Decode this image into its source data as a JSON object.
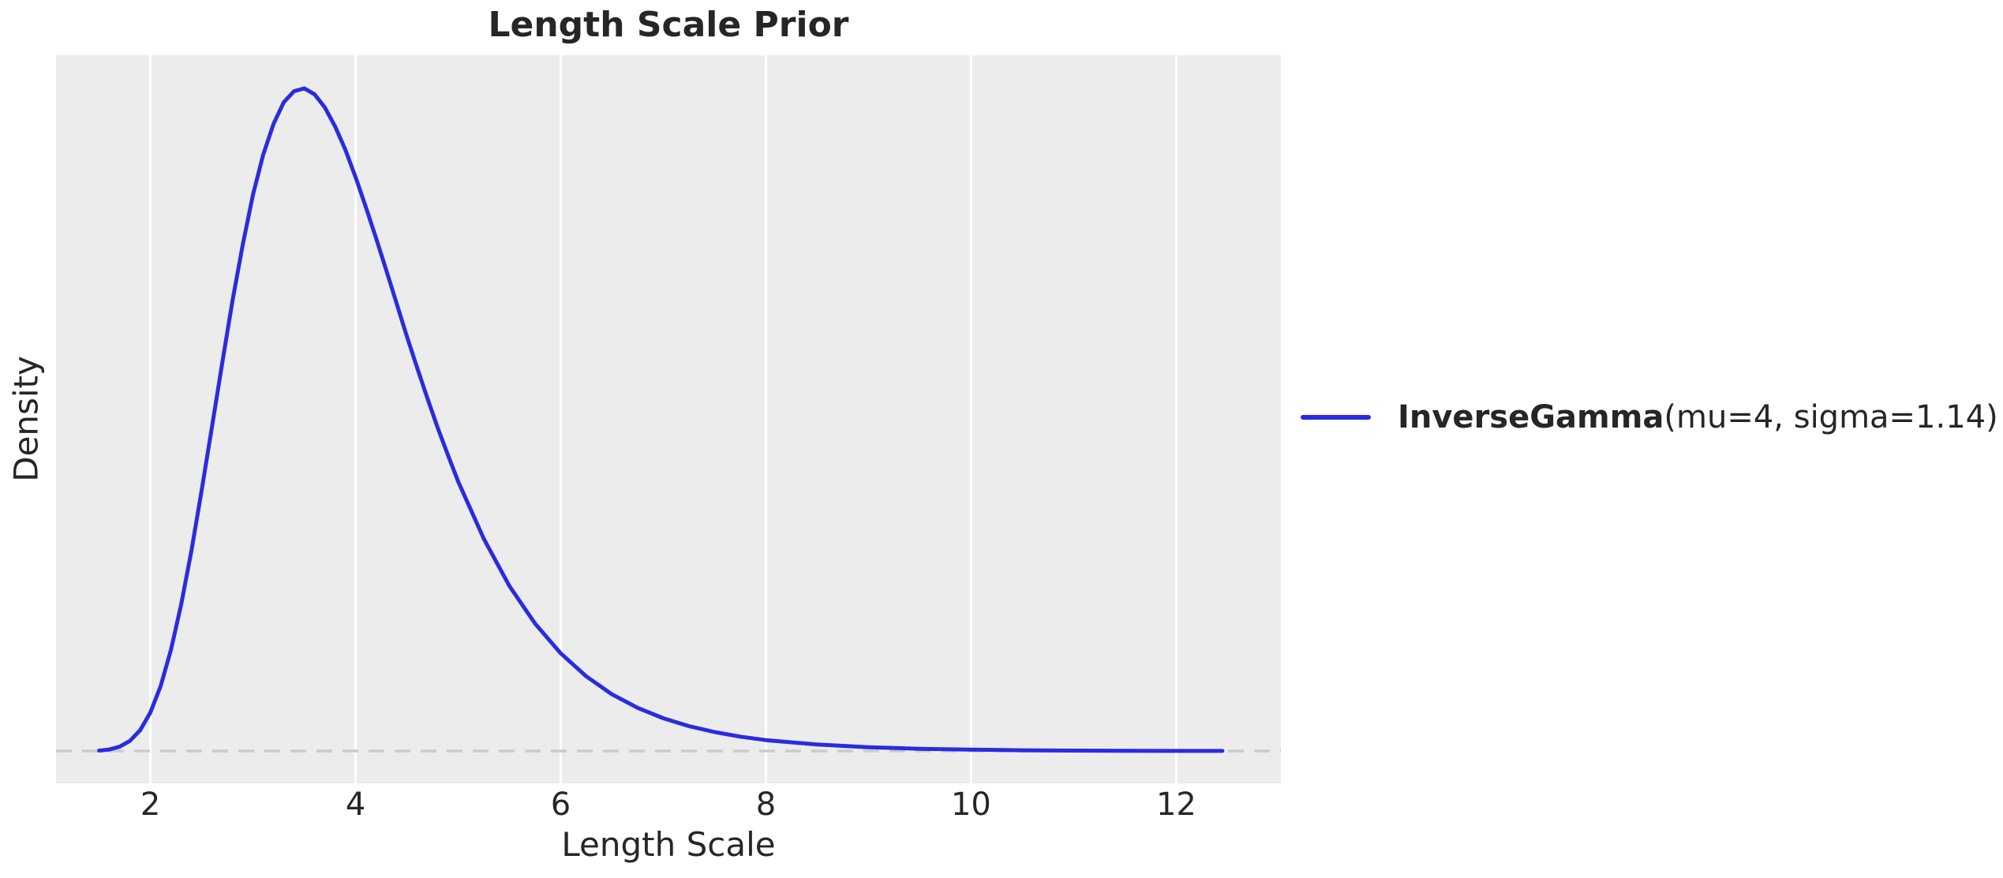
{
  "figure": {
    "title": "Length Scale Prior",
    "xlabel": "Length Scale",
    "ylabel": "Density"
  },
  "legend": {
    "label_bold": "InverseGamma",
    "label_rest": "(mu=4, sigma=1.14)"
  },
  "colors": {
    "curve": "#2b2be0",
    "plot_bg": "#ececec",
    "grid": "#ffffff",
    "zero_line": "#cbcbcb",
    "text": "#262626"
  },
  "chart_data": {
    "type": "line",
    "title": "Length Scale Prior",
    "xlabel": "Length Scale",
    "ylabel": "Density",
    "grid": "vertical-gridlines-only",
    "legend_position": "center-right-outside-axes",
    "xlim": [
      1.08,
      13.02
    ],
    "ylim": [
      -0.0204,
      0.4395
    ],
    "x_ticks": [
      2,
      4,
      6,
      8,
      10,
      12
    ],
    "y_ticks": [],
    "zero_line": {
      "y": 0,
      "style": "dashed"
    },
    "series": [
      {
        "name": "InverseGamma(mu=4, sigma=1.14)",
        "distribution": "InverseGamma",
        "params": {
          "mu": 4,
          "sigma": 1.14
        },
        "peak": {
          "x": 3.48,
          "density": 0.4185
        },
        "x": [
          1.5,
          1.6,
          1.7,
          1.8,
          1.9,
          2.0,
          2.1,
          2.2,
          2.3,
          2.4,
          2.5,
          2.6,
          2.7,
          2.8,
          2.9,
          3.0,
          3.1,
          3.2,
          3.3,
          3.4,
          3.5,
          3.6,
          3.7,
          3.8,
          3.9,
          4.0,
          4.1,
          4.2,
          4.3,
          4.4,
          4.5,
          4.6,
          4.7,
          4.8,
          4.9,
          5.0,
          5.25,
          5.5,
          5.75,
          6.0,
          6.25,
          6.5,
          6.75,
          7.0,
          7.25,
          7.5,
          7.75,
          8.0,
          8.5,
          9.0,
          9.5,
          10.0,
          10.5,
          11.0,
          11.5,
          12.0,
          12.45
        ],
        "density": [
          0.0003,
          0.001,
          0.0027,
          0.0064,
          0.0132,
          0.0244,
          0.0411,
          0.0639,
          0.0926,
          0.1266,
          0.1649,
          0.2048,
          0.2451,
          0.2845,
          0.3198,
          0.3515,
          0.3768,
          0.3961,
          0.4098,
          0.4168,
          0.4185,
          0.4148,
          0.4065,
          0.3945,
          0.3798,
          0.3624,
          0.3437,
          0.324,
          0.3036,
          0.2828,
          0.262,
          0.2422,
          0.2229,
          0.2043,
          0.1871,
          0.1703,
          0.1341,
          0.1042,
          0.0805,
          0.0617,
          0.0471,
          0.0358,
          0.0273,
          0.0207,
          0.0157,
          0.012,
          0.0091,
          0.0069,
          0.0041,
          0.0024,
          0.0014,
          0.0009,
          0.0005,
          0.0003,
          0.0002,
          0.0001,
          0.0001
        ]
      }
    ]
  }
}
